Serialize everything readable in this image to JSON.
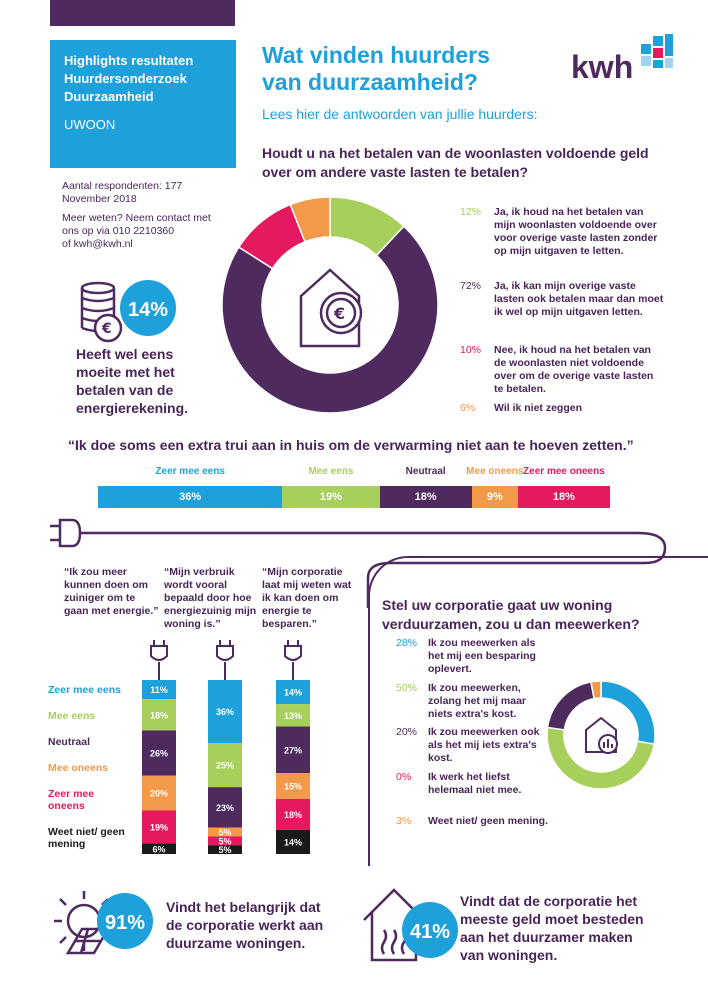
{
  "header": {
    "highlights_lines": [
      "Highlights resultaten",
      "Huurdersonderzoek",
      "Duurzaamheid"
    ],
    "organisation": "UWOON",
    "title_lines": [
      "Wat vinden huurders",
      "van duurzaamheid?"
    ],
    "subtitle": "Lees hier de antwoorden van jullie huurders:",
    "logo_text": "kwh"
  },
  "meta": {
    "respondents": "Aantal respondenten: 177",
    "date": "November 2018",
    "contact_lines": [
      "Meer weten? Neem contact met",
      "ons op via 010 2210360",
      "of kwh@kwh.nl"
    ]
  },
  "energy_bill": {
    "value": "14%",
    "text_lines": [
      "Heeft wel eens",
      "moeite met het",
      "betalen van de",
      "energierekening."
    ]
  },
  "colors": {
    "blue": "#1ea0db",
    "green": "#a8cf5b",
    "purple": "#4e2a5f",
    "orange": "#f39a4a",
    "red": "#e5195f",
    "black": "#1a1a1a"
  },
  "chart_data": [
    {
      "type": "pie",
      "title": "Houdt u na het betalen van de woonlasten voldoende geld over om andere vaste lasten te betalen?",
      "slices": [
        {
          "pct": "12%",
          "value": 12,
          "color": "#a8cf5b",
          "label": "Ja, ik houd na het betalen van mijn woonlasten voldoende over voor overige vaste lasten zonder op mijn uitgaven te letten."
        },
        {
          "pct": "72%",
          "value": 72,
          "color": "#4e2a5f",
          "label": "Ja, ik kan mijn overige vaste lasten ook betalen maar dan moet ik wel op mijn uitgaven letten."
        },
        {
          "pct": "10%",
          "value": 10,
          "color": "#e5195f",
          "label": "Nee, ik houd na het betalen van de woonlasten niet voldoende over om de overige vaste lasten te betalen."
        },
        {
          "pct": "6%",
          "value": 6,
          "color": "#f39a4a",
          "label": "Wil ik niet zeggen"
        }
      ]
    },
    {
      "type": "bar",
      "title": "“Ik doe soms een extra trui aan in huis om de verwarming niet aan te hoeven zetten.”",
      "series": [
        {
          "name": "Zeer mee eens",
          "value": 36,
          "label": "36%",
          "color": "#1ea0db"
        },
        {
          "name": "Mee eens",
          "value": 19,
          "label": "19%",
          "color": "#a8cf5b"
        },
        {
          "name": "Neutraal",
          "value": 18,
          "label": "18%",
          "color": "#4e2a5f"
        },
        {
          "name": "Mee oneens",
          "value": 9,
          "label": "9%",
          "color": "#f39a4a"
        },
        {
          "name": "Zeer mee oneens",
          "value": 18,
          "label": "18%",
          "color": "#e5195f"
        }
      ]
    },
    {
      "type": "bar",
      "categories": [
        "“Ik zou meer kunnen doen om zuiniger om te gaan met energie.”",
        "“Mijn verbruik wordt vooral bepaald door hoe energiezuinig mijn woning is.”",
        "“Mijn corporatie laat mij weten wat ik kan doen om energie te besparen.”"
      ],
      "series": [
        {
          "name": "Zeer mee eens",
          "color": "#1ea0db",
          "values": [
            11,
            36,
            14
          ],
          "labels": [
            "11%",
            "36%",
            "14%"
          ]
        },
        {
          "name": "Mee eens",
          "color": "#a8cf5b",
          "values": [
            18,
            25,
            13
          ],
          "labels": [
            "18%",
            "25%",
            "13%"
          ]
        },
        {
          "name": "Neutraal",
          "color": "#4e2a5f",
          "values": [
            26,
            23,
            27
          ],
          "labels": [
            "26%",
            "23%",
            "27%"
          ]
        },
        {
          "name": "Mee oneens",
          "color": "#f39a4a",
          "values": [
            20,
            5,
            15
          ],
          "labels": [
            "20%",
            "5%",
            "15%"
          ]
        },
        {
          "name": "Zeer mee oneens",
          "color": "#e5195f",
          "values": [
            19,
            5,
            18
          ],
          "labels": [
            "19%",
            "5%",
            "18%"
          ]
        },
        {
          "name": "Weet niet/ geen mening",
          "color": "#1a1a1a",
          "values": [
            6,
            5,
            14
          ],
          "labels": [
            "6%",
            "5%",
            "14%"
          ]
        }
      ]
    },
    {
      "type": "pie",
      "title": "Stel uw corporatie gaat uw woning verduurzamen, zou u dan meewerken?",
      "slices": [
        {
          "pct": "28%",
          "value": 28,
          "color": "#1ea0db",
          "label": "Ik zou meewerken als het mij een besparing oplevert."
        },
        {
          "pct": "50%",
          "value": 50,
          "color": "#a8cf5b",
          "label": "Ik zou meewerken, zolang het mij maar niets extra's kost."
        },
        {
          "pct": "20%",
          "value": 20,
          "color": "#4e2a5f",
          "label": "Ik zou meewerken ook als het mij iets extra's kost."
        },
        {
          "pct": "0%",
          "value": 0,
          "color": "#e5195f",
          "label": "Ik werk het liefst helemaal niet mee."
        },
        {
          "pct": "3%",
          "value": 3,
          "color": "#f39a4a",
          "label": "Weet niet/ geen mening."
        }
      ]
    }
  ],
  "bottom": {
    "left_value": "91%",
    "left_text_lines": [
      "Vindt het belangrijk dat",
      "de corporatie werkt aan",
      "duurzame woningen."
    ],
    "right_value": "41%",
    "right_text_lines": [
      "Vindt dat de corporatie het",
      "meeste geld moet besteden",
      "aan het duurzamer maken",
      "van woningen."
    ]
  }
}
